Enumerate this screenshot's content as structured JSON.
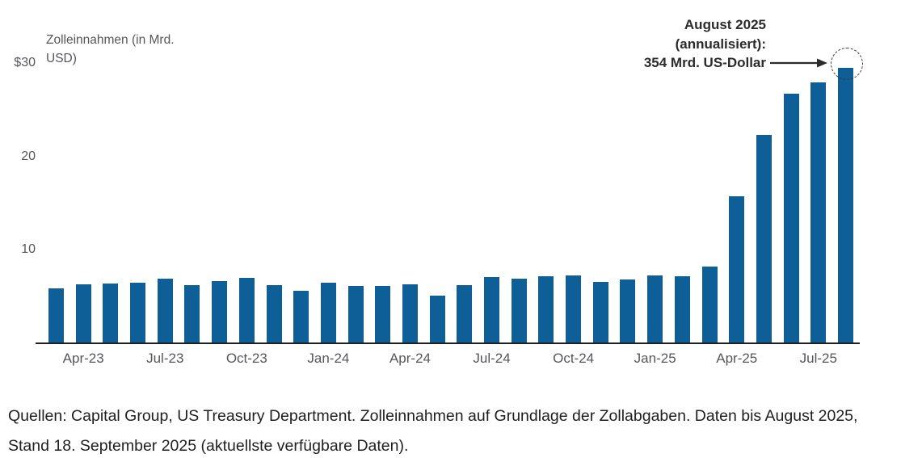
{
  "chart": {
    "axis_title_line1": "Zolleinnahmen (in Mrd.",
    "axis_title_line2": "USD)"
  },
  "chart_data": {
    "type": "bar",
    "title": "Zolleinnahmen (in Mrd. USD)",
    "unit": "Mrd. USD",
    "categories": [
      "Mar-23",
      "Apr-23",
      "May-23",
      "Jun-23",
      "Jul-23",
      "Aug-23",
      "Sep-23",
      "Oct-23",
      "Nov-23",
      "Dec-23",
      "Jan-24",
      "Feb-24",
      "Mar-24",
      "Apr-24",
      "May-24",
      "Jun-24",
      "Jul-24",
      "Aug-24",
      "Sep-24",
      "Oct-24",
      "Nov-24",
      "Dec-24",
      "Jan-25",
      "Feb-25",
      "Mar-25",
      "Apr-25",
      "May-25",
      "Jun-25",
      "Jul-25",
      "Aug-25"
    ],
    "values": [
      5.9,
      6.3,
      6.4,
      6.5,
      6.9,
      6.2,
      6.7,
      7.0,
      6.2,
      5.6,
      6.5,
      6.1,
      6.1,
      6.3,
      5.1,
      6.2,
      7.1,
      6.9,
      7.2,
      7.3,
      6.6,
      6.8,
      7.3,
      7.2,
      8.2,
      15.7,
      22.3,
      26.7,
      27.9,
      29.5
    ],
    "x_tick_labels": [
      "Apr-23",
      "Jul-23",
      "Oct-23",
      "Jan-24",
      "Apr-24",
      "Jul-24",
      "Oct-24",
      "Jan-25",
      "Apr-25",
      "Jul-25"
    ],
    "x_tick_indices": [
      1,
      4,
      7,
      10,
      13,
      16,
      19,
      22,
      25,
      28
    ],
    "y_ticks": [
      {
        "value": 30,
        "label": "$30"
      },
      {
        "value": 20,
        "label": "20"
      },
      {
        "value": 10,
        "label": "10"
      }
    ],
    "ylim": [
      0,
      30
    ],
    "grid": false,
    "bar_color": "#0e5e98",
    "highlight_index": 29
  },
  "annotation": {
    "line1": "August 2025",
    "line2": "(annualisiert):",
    "line3": "354 Mrd. US-Dollar",
    "arrow_color": "#2b2b2b"
  },
  "source": {
    "text": "Quellen: Capital Group, US Treasury Department. Zolleinnahmen auf Grundlage der Zollabgaben. Daten bis August 2025, Stand 18. September 2025 (aktuellste verfügbare Daten)."
  }
}
